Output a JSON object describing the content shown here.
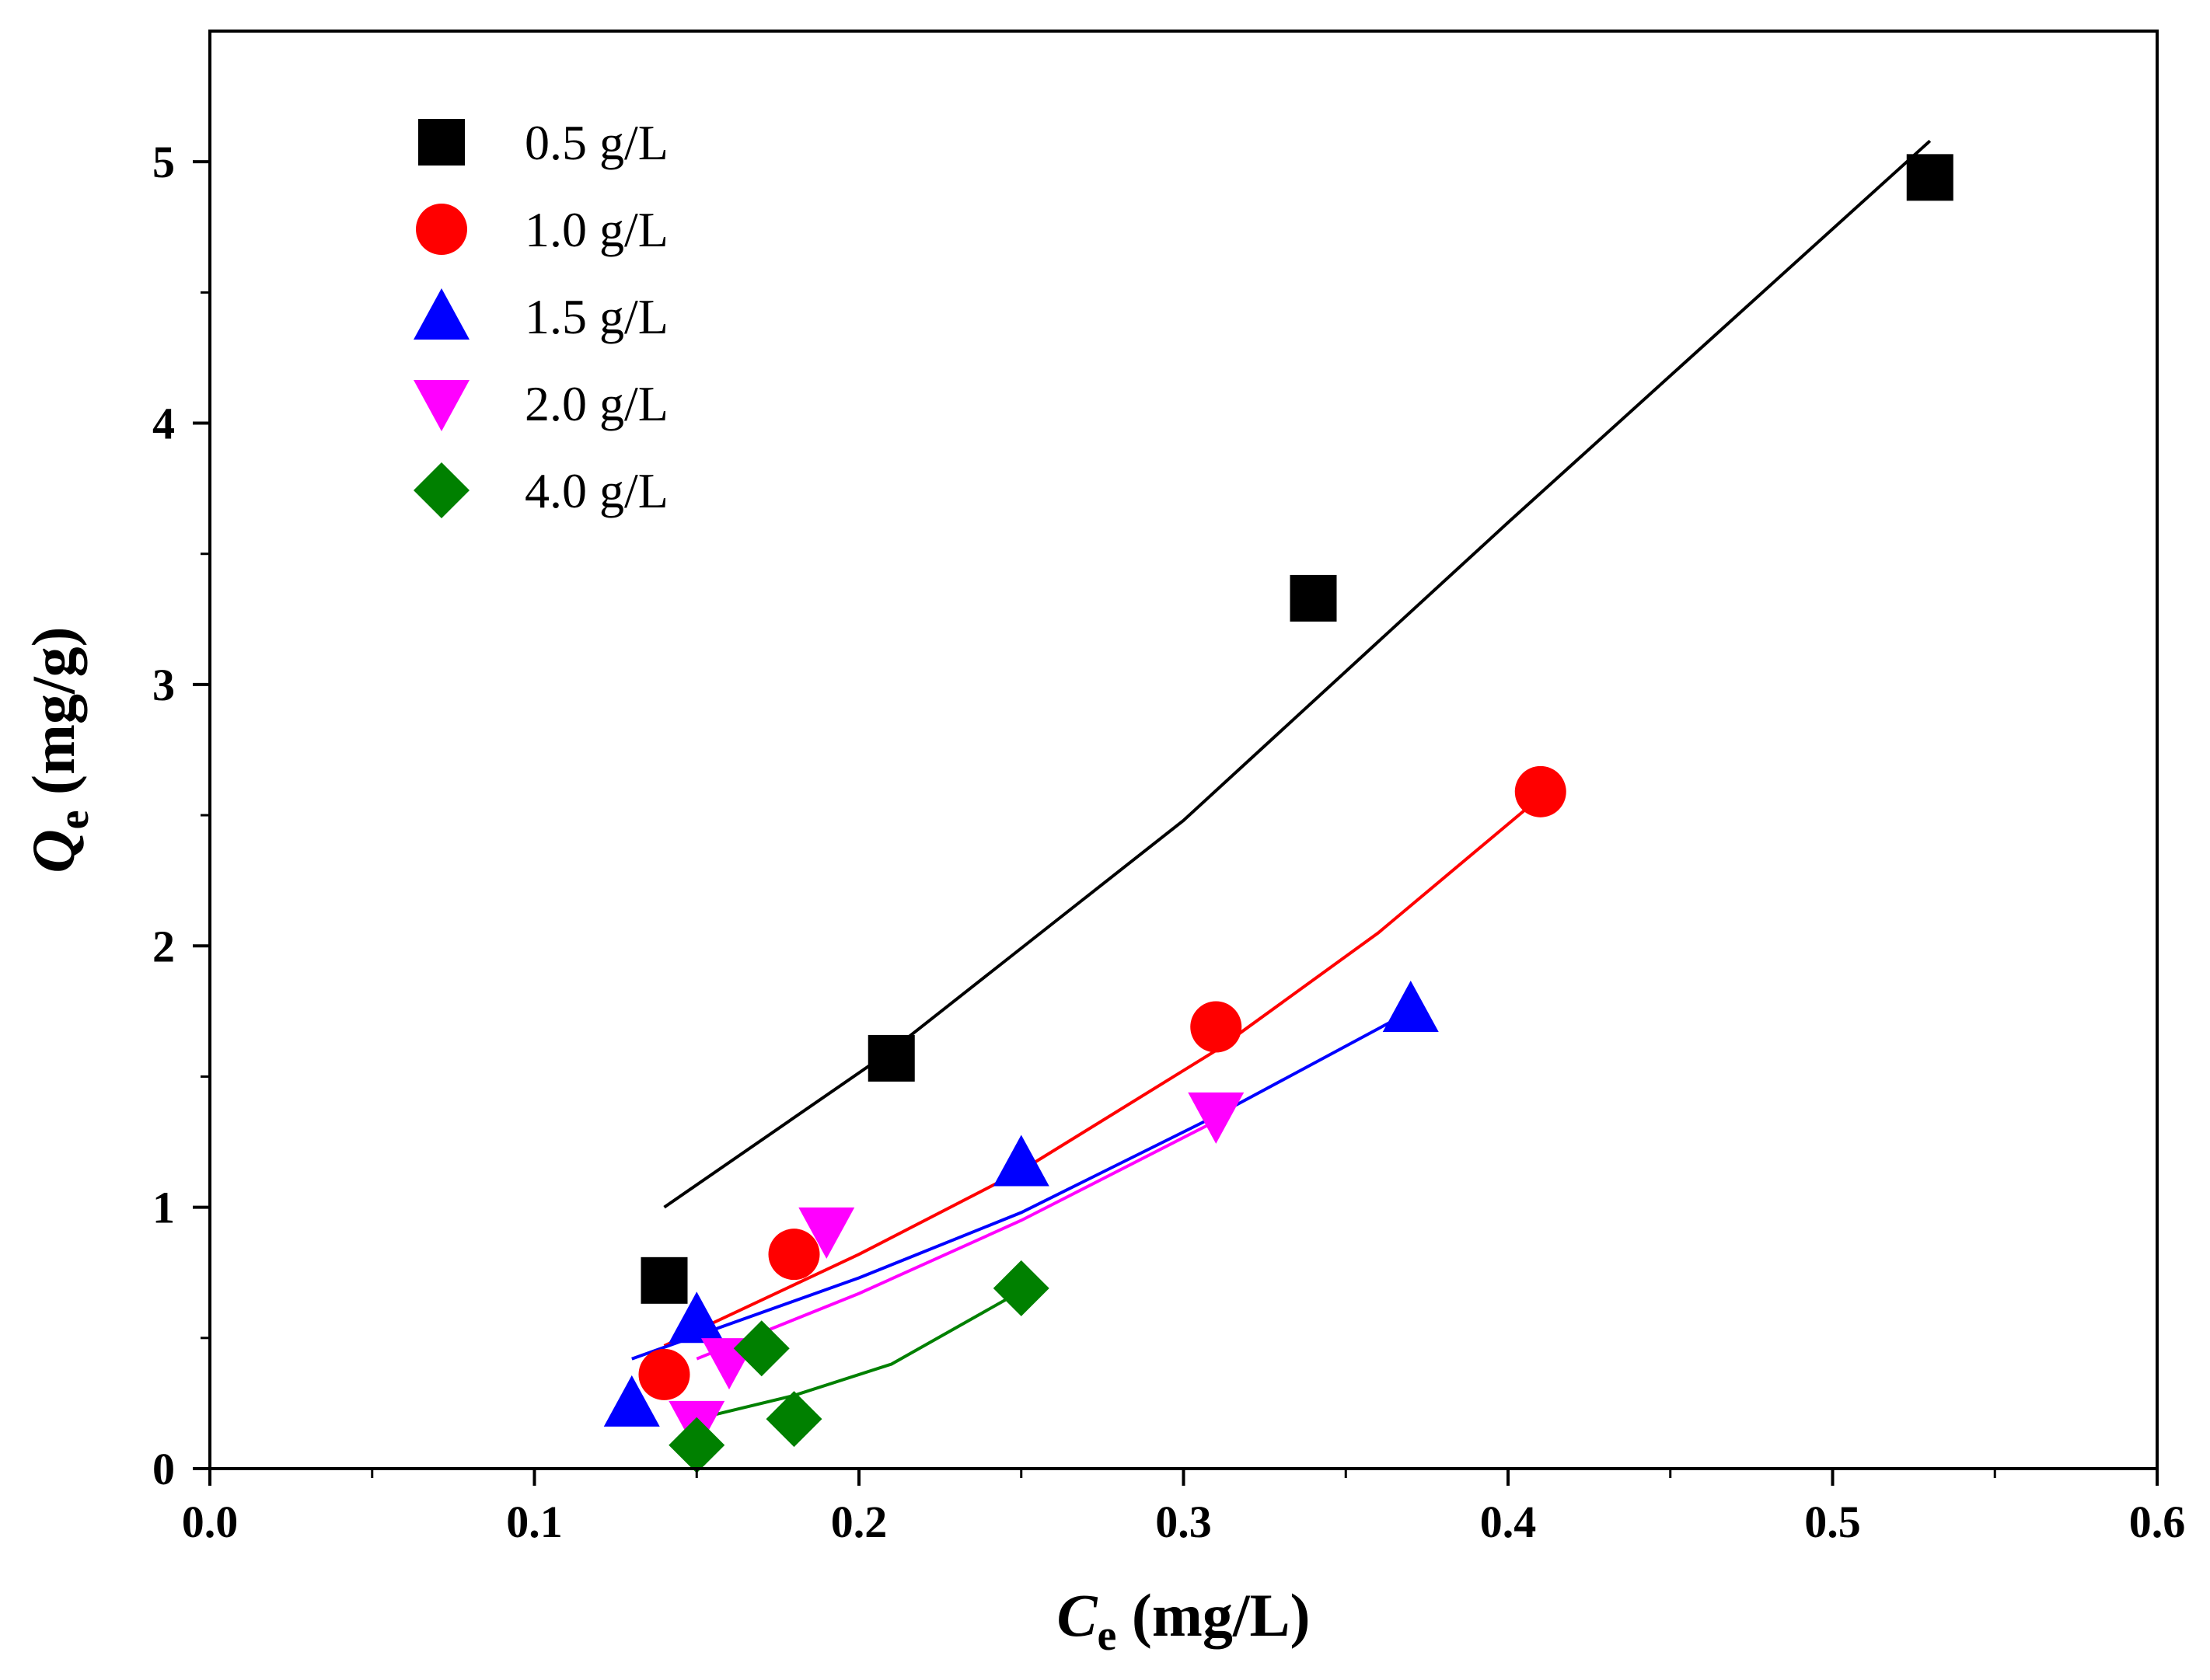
{
  "chart_data": {
    "type": "scatter",
    "title": "",
    "xlabel": {
      "main": "C",
      "sub": "e",
      "unit": " (mg/L)"
    },
    "ylabel": {
      "main": "Q",
      "sub": "e",
      "unit": " (mg/g)"
    },
    "xlim": [
      0,
      0.6
    ],
    "ylim": [
      0,
      5.5
    ],
    "xticks": [
      0.0,
      0.1,
      0.2,
      0.3,
      0.4,
      0.5,
      0.6
    ],
    "xtick_labels": [
      "0.0",
      "0.1",
      "0.2",
      "0.3",
      "0.4",
      "0.5",
      "0.6"
    ],
    "yticks": [
      0,
      1,
      2,
      3,
      4,
      5
    ],
    "ytick_labels": [
      "0",
      "1",
      "2",
      "3",
      "4",
      "5"
    ],
    "grid": false,
    "legend_position": "top-left",
    "series": [
      {
        "name": "0.5 g/L",
        "color": "#000000",
        "marker": "square",
        "points": [
          [
            0.14,
            0.72
          ],
          [
            0.21,
            1.57
          ],
          [
            0.34,
            3.33
          ],
          [
            0.53,
            4.94
          ]
        ],
        "fit": [
          [
            0.14,
            1.0
          ],
          [
            0.21,
            1.6
          ],
          [
            0.3,
            2.48
          ],
          [
            0.4,
            3.62
          ],
          [
            0.53,
            5.08
          ]
        ]
      },
      {
        "name": "1.0 g/L",
        "color": "#ff0000",
        "marker": "circle",
        "points": [
          [
            0.14,
            0.36
          ],
          [
            0.18,
            0.82
          ],
          [
            0.31,
            1.69
          ],
          [
            0.41,
            2.59
          ]
        ],
        "fit": [
          [
            0.14,
            0.47
          ],
          [
            0.2,
            0.82
          ],
          [
            0.25,
            1.14
          ],
          [
            0.31,
            1.6
          ],
          [
            0.36,
            2.05
          ],
          [
            0.41,
            2.57
          ]
        ]
      },
      {
        "name": "1.5 g/L",
        "color": "#0000ff",
        "marker": "triangle-up",
        "points": [
          [
            0.13,
            0.25
          ],
          [
            0.15,
            0.57
          ],
          [
            0.25,
            1.17
          ],
          [
            0.37,
            1.76
          ]
        ],
        "fit": [
          [
            0.13,
            0.42
          ],
          [
            0.2,
            0.73
          ],
          [
            0.25,
            0.98
          ],
          [
            0.31,
            1.35
          ],
          [
            0.37,
            1.75
          ]
        ]
      },
      {
        "name": "2.0 g/L",
        "color": "#ff00ff",
        "marker": "triangle-down",
        "points": [
          [
            0.15,
            0.17
          ],
          [
            0.16,
            0.41
          ],
          [
            0.19,
            0.91
          ],
          [
            0.31,
            1.35
          ]
        ],
        "fit": [
          [
            0.15,
            0.42
          ],
          [
            0.2,
            0.67
          ],
          [
            0.25,
            0.95
          ],
          [
            0.31,
            1.33
          ]
        ]
      },
      {
        "name": "4.0 g/L",
        "color": "#008000",
        "marker": "diamond",
        "points": [
          [
            0.15,
            0.09
          ],
          [
            0.17,
            0.46
          ],
          [
            0.18,
            0.19
          ],
          [
            0.25,
            0.69
          ]
        ],
        "fit": [
          [
            0.15,
            0.19
          ],
          [
            0.18,
            0.28
          ],
          [
            0.21,
            0.4
          ],
          [
            0.25,
            0.68
          ]
        ]
      }
    ]
  }
}
